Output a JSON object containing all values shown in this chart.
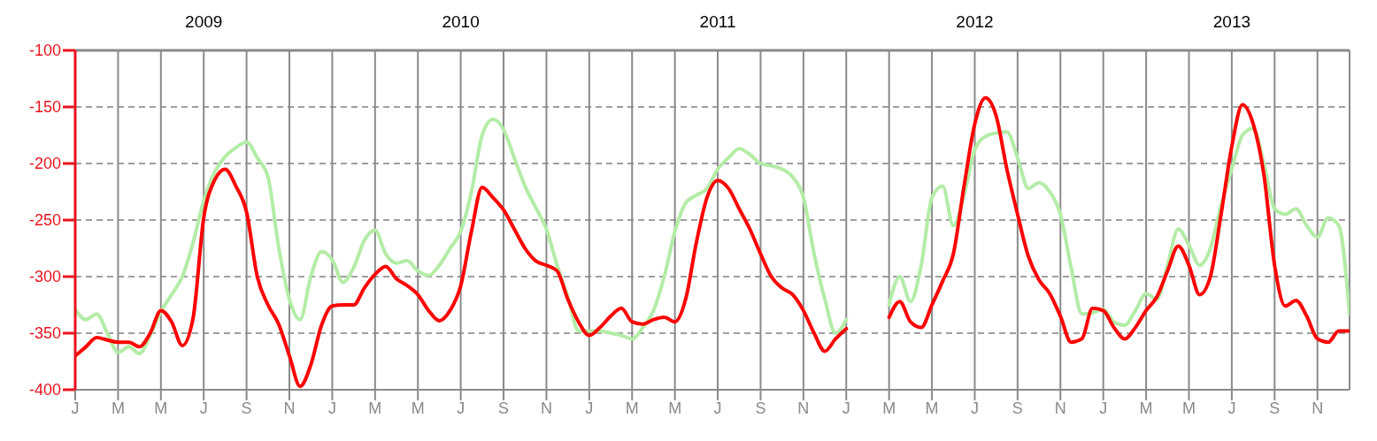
{
  "chart_data": {
    "type": "line",
    "categories": [
      "J",
      null,
      null,
      null,
      "M",
      null,
      null,
      null,
      "M",
      null,
      null,
      null,
      "J",
      null,
      null,
      null,
      "S",
      null,
      null,
      null,
      "N",
      null,
      null,
      null,
      "J",
      null,
      null,
      null,
      "M",
      null,
      null,
      null,
      "M",
      null,
      null,
      null,
      "J",
      null,
      null,
      null,
      "S",
      null,
      null,
      null,
      "N",
      null,
      null,
      null,
      "J",
      null,
      null,
      null,
      "M",
      null,
      null,
      null,
      "M",
      null,
      null,
      null,
      "J",
      null,
      null,
      null,
      "S",
      null,
      null,
      null,
      "N",
      null,
      null,
      null,
      "J",
      null,
      null,
      null,
      "M",
      null,
      null,
      null,
      "M",
      null,
      null,
      null,
      "J",
      null,
      null,
      null,
      "S",
      null,
      null,
      null,
      "N",
      null,
      null,
      null,
      "J",
      null,
      null,
      null,
      "M",
      null,
      null,
      null,
      "M",
      null,
      null,
      null,
      "J",
      null,
      null,
      null,
      "S",
      null,
      null,
      null,
      "N",
      null,
      null,
      null
    ],
    "ylim": [
      -400,
      -100
    ],
    "yticks": [
      -400,
      -350,
      -300,
      -250,
      -200,
      -150,
      -100
    ],
    "annotations": [
      "2009",
      "2010",
      "2011",
      "2012",
      "2013"
    ],
    "grid": true,
    "marker": "none",
    "line_style": "solid",
    "series": [
      {
        "color": "#b3eca6",
        "values": [
          -329,
          -338,
          -333,
          -350,
          -367,
          -362,
          -368,
          -352,
          -331,
          -316,
          -300,
          -270,
          -233,
          -208,
          -194,
          -186,
          -181,
          -195,
          -212,
          -274,
          -320,
          -338,
          -300,
          -278,
          -285,
          -305,
          -292,
          -268,
          -259,
          -280,
          -288,
          -286,
          -295,
          -299,
          -290,
          -275,
          -260,
          -225,
          -175,
          -161,
          -170,
          -195,
          -220,
          -239,
          -258,
          -290,
          -318,
          -348,
          -348,
          -348,
          -350,
          -352,
          -355,
          -345,
          -330,
          -300,
          -260,
          -235,
          -228,
          -222,
          -205,
          -195,
          -187,
          -192,
          -200,
          -202,
          -205,
          -212,
          -230,
          -280,
          -320,
          -350,
          -338,
          null,
          null,
          null,
          -325,
          -300,
          -322,
          -290,
          -230,
          -220,
          -255,
          -228,
          -188,
          -176,
          -173,
          -172,
          -195,
          -222,
          -217,
          -225,
          -245,
          -292,
          -333,
          -332,
          -329,
          -340,
          -343,
          -330,
          -315,
          -320,
          -290,
          -258,
          -272,
          -290,
          -275,
          -237,
          -205,
          -175,
          -169,
          -200,
          -240,
          -245,
          -240,
          -255,
          -265,
          -248,
          -255,
          -333
        ]
      },
      {
        "color": "#ff0000",
        "values": [
          -370,
          -362,
          -354,
          -356,
          -358,
          -358,
          -362,
          -350,
          -330,
          -340,
          -361,
          -337,
          -248,
          -215,
          -205,
          -220,
          -243,
          -300,
          -325,
          -342,
          -370,
          -397,
          -378,
          -343,
          -326,
          -325,
          -325,
          -310,
          -298,
          -291,
          -302,
          -308,
          -316,
          -330,
          -339,
          -330,
          -308,
          -260,
          -221,
          -230,
          -241,
          -258,
          -275,
          -286,
          -290,
          -295,
          -320,
          -340,
          -352,
          -345,
          -335,
          -328,
          -340,
          -342,
          -338,
          -336,
          -340,
          -320,
          -270,
          -230,
          -215,
          -222,
          -240,
          -258,
          -280,
          -300,
          -310,
          -316,
          -330,
          -350,
          -366,
          -355,
          -346,
          null,
          null,
          null,
          -336,
          -322,
          -340,
          -345,
          -325,
          -304,
          -280,
          -220,
          -165,
          -142,
          -158,
          -205,
          -245,
          -282,
          -303,
          -315,
          -335,
          -358,
          -355,
          -328,
          -330,
          -345,
          -355,
          -345,
          -330,
          -318,
          -295,
          -273,
          -290,
          -316,
          -300,
          -245,
          -185,
          -148,
          -165,
          -210,
          -290,
          -326,
          -321,
          -335,
          -355,
          -358,
          -348,
          -348
        ]
      }
    ]
  }
}
